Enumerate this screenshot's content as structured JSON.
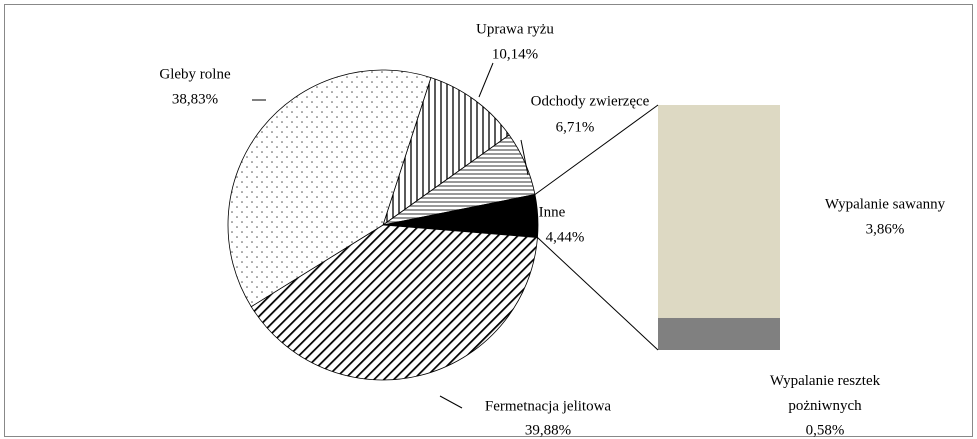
{
  "chart_data": {
    "type": "pie-of-bar",
    "categories": [
      "Uprawa ryżu",
      "Odchody zwierzęce",
      "Inne",
      "Fermetnacja jelitowa",
      "Gleby rolne"
    ],
    "values": [
      10.14,
      6.71,
      4.44,
      39.88,
      38.83
    ],
    "value_labels": [
      "10,14%",
      "6,71%",
      "4,44%",
      "39,88%",
      "38,83%"
    ],
    "bar": {
      "categories": [
        "Wypalanie sawanny",
        "Wypalanie resztek pożniwnych"
      ],
      "values": [
        3.86,
        0.58
      ],
      "value_labels": [
        "3,86%",
        "0,58%"
      ],
      "colors": [
        "#ddd9c3",
        "#808080"
      ]
    }
  }
}
